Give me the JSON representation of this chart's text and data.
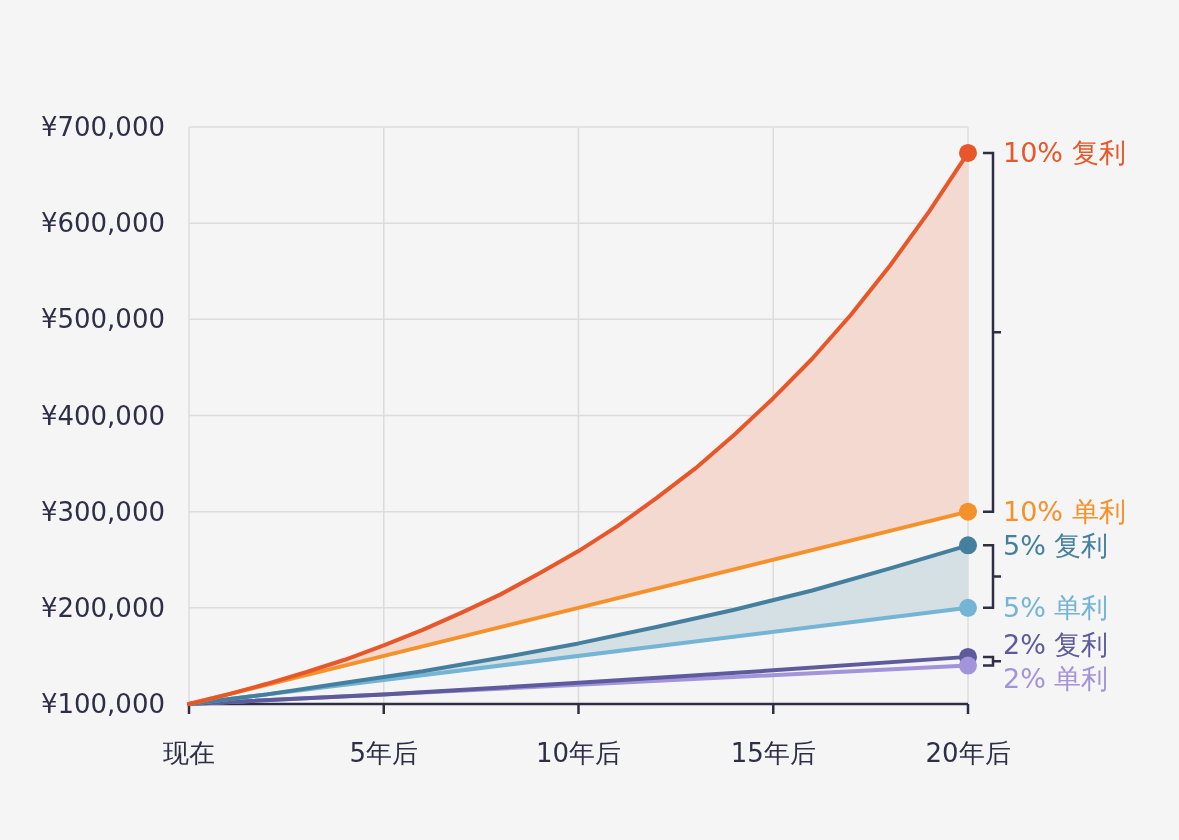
{
  "chart_data": {
    "type": "line",
    "xlim": [
      0,
      20
    ],
    "xticks": [
      {
        "value": 0,
        "label": "现在"
      },
      {
        "value": 5,
        "label": "5年后"
      },
      {
        "value": 10,
        "label": "10年后"
      },
      {
        "value": 15,
        "label": "15年后"
      },
      {
        "value": 20,
        "label": "20年后"
      }
    ],
    "ylim": [
      100000,
      700000
    ],
    "yticks": [
      {
        "value": 100000,
        "label": "¥100,000"
      },
      {
        "value": 200000,
        "label": "¥200,000"
      },
      {
        "value": 300000,
        "label": "¥300,000"
      },
      {
        "value": 400000,
        "label": "¥400,000"
      },
      {
        "value": 500000,
        "label": "¥500,000"
      },
      {
        "value": 600000,
        "label": "¥600,000"
      },
      {
        "value": 700000,
        "label": "¥700,000"
      }
    ],
    "grid": true,
    "series": [
      {
        "name": "10% 复利",
        "color": "#e8572a",
        "x": [
          0,
          1,
          2,
          3,
          4,
          5,
          6,
          7,
          8,
          9,
          10,
          11,
          12,
          13,
          14,
          15,
          16,
          17,
          18,
          19,
          20
        ],
        "values": [
          100000,
          110000,
          121000,
          133000,
          146000,
          161000,
          177000,
          195000,
          214000,
          236000,
          259000,
          285000,
          314000,
          345000,
          380000,
          418000,
          459000,
          505000,
          556000,
          612000,
          673000
        ],
        "lower": [
          100000,
          110000,
          120000,
          130000,
          140000,
          150000,
          160000,
          170000,
          180000,
          190000,
          200000,
          210000,
          220000,
          230000,
          240000,
          250000,
          260000,
          270000,
          280000,
          290000,
          300000
        ],
        "upper": [
          100000,
          110000,
          121000,
          133000,
          146000,
          161000,
          177000,
          195000,
          214000,
          236000,
          259000,
          285000,
          314000,
          345000,
          380000,
          418000,
          459000,
          505000,
          556000,
          612000,
          673000
        ]
      },
      {
        "name": "10% 单利",
        "color": "#f5912a",
        "x": [
          0,
          20
        ],
        "values": [
          100000,
          300000
        ]
      },
      {
        "name": "5% 复利",
        "color": "#457f9e",
        "x": [
          0,
          2,
          4,
          6,
          8,
          10,
          12,
          14,
          16,
          18,
          20
        ],
        "values": [
          100000,
          110000,
          122000,
          134000,
          148000,
          163000,
          180000,
          198000,
          218000,
          241000,
          265000
        ],
        "lower": [
          100000,
          110000,
          120000,
          130000,
          140000,
          150000,
          160000,
          170000,
          180000,
          190000,
          200000
        ],
        "upper": [
          100000,
          110000,
          122000,
          134000,
          148000,
          163000,
          180000,
          198000,
          218000,
          241000,
          265000
        ]
      },
      {
        "name": "5% 单利",
        "color": "#74b4d4",
        "x": [
          0,
          20
        ],
        "values": [
          100000,
          200000
        ]
      },
      {
        "name": "2% 复利",
        "color": "#5d5b9c",
        "x": [
          0,
          5,
          10,
          15,
          20
        ],
        "values": [
          100000,
          110000,
          122000,
          135000,
          149000
        ]
      },
      {
        "name": "2% 单利",
        "color": "#a294d8",
        "x": [
          0,
          20
        ],
        "values": [
          100000,
          140000
        ]
      }
    ]
  }
}
